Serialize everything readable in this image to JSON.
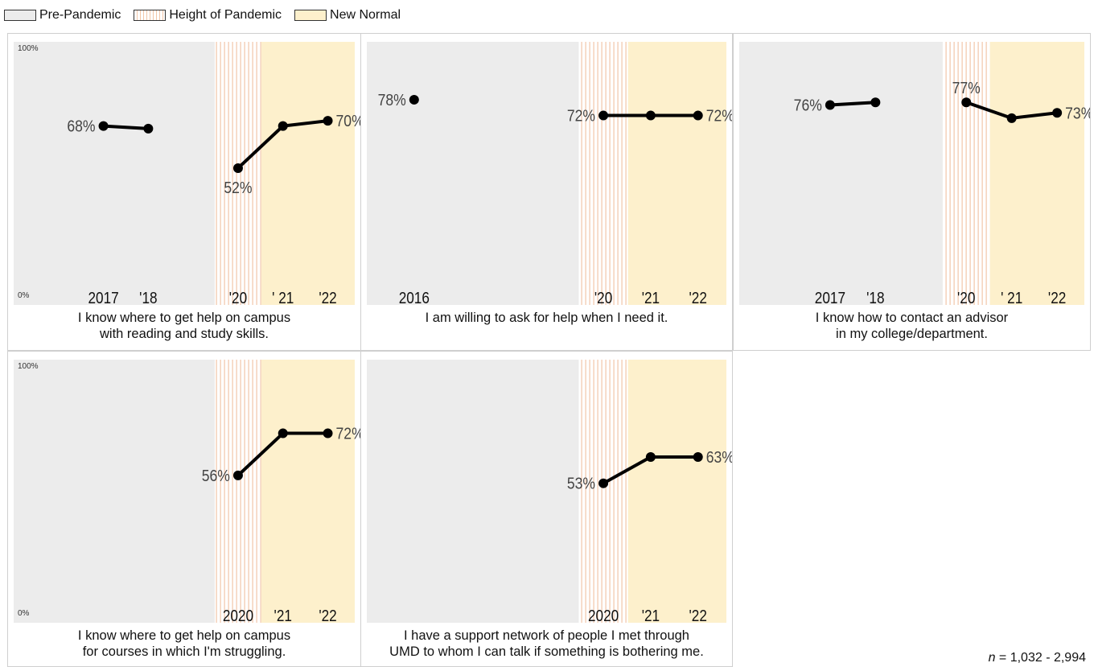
{
  "legend": {
    "pre": "Pre-Pandemic",
    "pandemic": "Height of Pandemic",
    "new_normal": "New Normal"
  },
  "colors": {
    "pre": "#ececec",
    "pandemic_stripe": "#f2c6a8",
    "new_normal": "#fdf0cc",
    "line": "#000000",
    "label": "#444444"
  },
  "footnote": {
    "n_symbol": "n",
    "n_text": " = 1,032 - 2,994"
  },
  "chart_data": [
    {
      "type": "line",
      "caption_lines": [
        "I know where to get help on campus",
        "with reading and study skills."
      ],
      "y_axis": {
        "min_label": "0%",
        "max_label": "100%"
      },
      "ylim": [
        0,
        100
      ],
      "xlim": [
        2015,
        2022.6
      ],
      "x_ticks": [
        {
          "x": 2017,
          "label": "2017"
        },
        {
          "x": 2018,
          "label": "'18"
        },
        {
          "x": 2020,
          "label": "'20"
        },
        {
          "x": 2021,
          "label": "' 21"
        },
        {
          "x": 2022,
          "label": "'22"
        }
      ],
      "segments": [
        [
          {
            "x": 2017,
            "y": 68
          },
          {
            "x": 2018,
            "y": 67
          }
        ],
        [
          {
            "x": 2020,
            "y": 52
          },
          {
            "x": 2021,
            "y": 68
          },
          {
            "x": 2022,
            "y": 70
          }
        ]
      ],
      "data_labels": [
        {
          "x": 2017,
          "y": 68,
          "text": "68%",
          "pos": "left"
        },
        {
          "x": 2020,
          "y": 52,
          "text": "52%",
          "pos": "below"
        },
        {
          "x": 2022,
          "y": 70,
          "text": "70%",
          "pos": "right"
        }
      ]
    },
    {
      "type": "line",
      "caption_lines": [
        "I am willing to ask for help when I need it."
      ],
      "ylim": [
        0,
        100
      ],
      "xlim": [
        2015,
        2022.6
      ],
      "x_ticks": [
        {
          "x": 2016,
          "label": "2016"
        },
        {
          "x": 2020,
          "label": "'20"
        },
        {
          "x": 2021,
          "label": "'21"
        },
        {
          "x": 2022,
          "label": "'22"
        }
      ],
      "segments": [
        [
          {
            "x": 2016,
            "y": 78
          }
        ],
        [
          {
            "x": 2020,
            "y": 72
          },
          {
            "x": 2021,
            "y": 72
          },
          {
            "x": 2022,
            "y": 72
          }
        ]
      ],
      "data_labels": [
        {
          "x": 2016,
          "y": 78,
          "text": "78%",
          "pos": "left"
        },
        {
          "x": 2020,
          "y": 72,
          "text": "72%",
          "pos": "left"
        },
        {
          "x": 2022,
          "y": 72,
          "text": "72%",
          "pos": "right"
        }
      ]
    },
    {
      "type": "line",
      "caption_lines": [
        "I know how to contact an advisor",
        "in my college/department."
      ],
      "ylim": [
        0,
        100
      ],
      "xlim": [
        2015,
        2022.6
      ],
      "x_ticks": [
        {
          "x": 2017,
          "label": "2017"
        },
        {
          "x": 2018,
          "label": "'18"
        },
        {
          "x": 2020,
          "label": "'20"
        },
        {
          "x": 2021,
          "label": "' 21"
        },
        {
          "x": 2022,
          "label": "'22"
        }
      ],
      "segments": [
        [
          {
            "x": 2017,
            "y": 76
          },
          {
            "x": 2018,
            "y": 77
          }
        ],
        [
          {
            "x": 2020,
            "y": 77
          },
          {
            "x": 2021,
            "y": 71
          },
          {
            "x": 2022,
            "y": 73
          }
        ]
      ],
      "data_labels": [
        {
          "x": 2017,
          "y": 76,
          "text": "76%",
          "pos": "left"
        },
        {
          "x": 2020,
          "y": 77,
          "text": "77%",
          "pos": "above"
        },
        {
          "x": 2022,
          "y": 73,
          "text": "73%",
          "pos": "right"
        }
      ]
    },
    {
      "type": "line",
      "caption_lines": [
        "I know where to get help on campus",
        "for courses in which I'm struggling."
      ],
      "y_axis": {
        "min_label": "0%",
        "max_label": "100%"
      },
      "ylim": [
        0,
        100
      ],
      "xlim": [
        2015,
        2022.6
      ],
      "x_ticks": [
        {
          "x": 2020,
          "label": "2020"
        },
        {
          "x": 2021,
          "label": "'21"
        },
        {
          "x": 2022,
          "label": "'22"
        }
      ],
      "segments": [
        [
          {
            "x": 2020,
            "y": 56
          },
          {
            "x": 2021,
            "y": 72
          },
          {
            "x": 2022,
            "y": 72
          }
        ]
      ],
      "data_labels": [
        {
          "x": 2020,
          "y": 56,
          "text": "56%",
          "pos": "left"
        },
        {
          "x": 2022,
          "y": 72,
          "text": "72%",
          "pos": "right"
        }
      ]
    },
    {
      "type": "line",
      "caption_lines": [
        "I have a support network of people I met through",
        "UMD to whom I can talk if something is bothering me."
      ],
      "ylim": [
        0,
        100
      ],
      "xlim": [
        2015,
        2022.6
      ],
      "x_ticks": [
        {
          "x": 2020,
          "label": "2020"
        },
        {
          "x": 2021,
          "label": "'21"
        },
        {
          "x": 2022,
          "label": "'22"
        }
      ],
      "segments": [
        [
          {
            "x": 2020,
            "y": 53
          },
          {
            "x": 2021,
            "y": 63
          },
          {
            "x": 2022,
            "y": 63
          }
        ]
      ],
      "data_labels": [
        {
          "x": 2020,
          "y": 53,
          "text": "53%",
          "pos": "left"
        },
        {
          "x": 2022,
          "y": 63,
          "text": "63%",
          "pos": "right"
        }
      ]
    }
  ]
}
